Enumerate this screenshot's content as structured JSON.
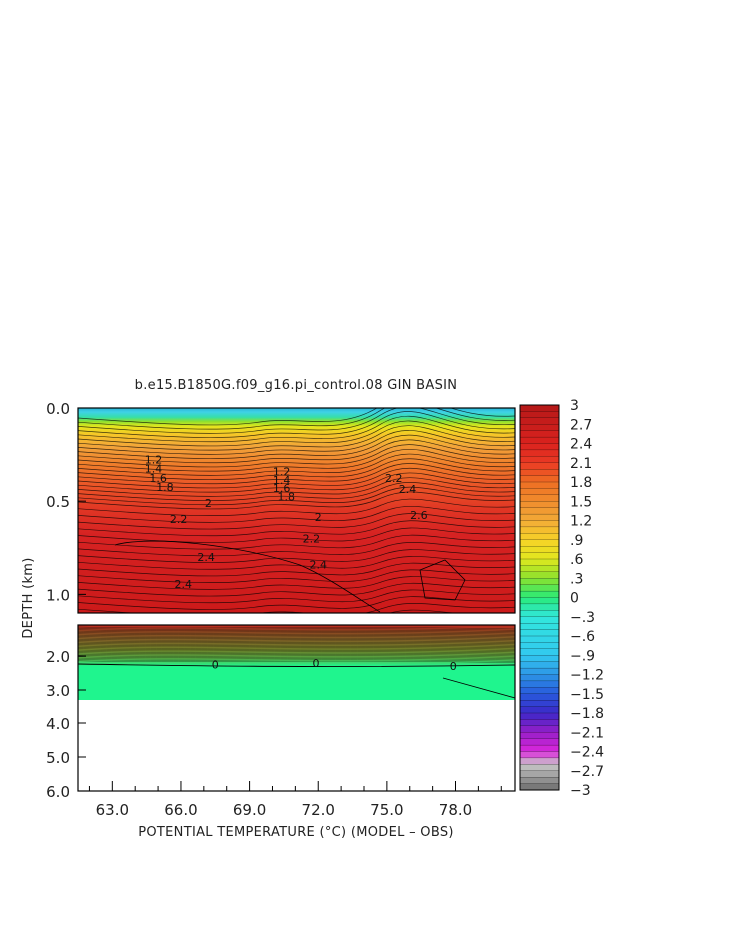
{
  "chart_data": {
    "type": "heatmap",
    "title": "b.e15.B1850G.f09_g16.pi_control.08 GIN BASIN",
    "xlabel": "POTENTIAL TEMPERATURE (°C) (MODEL – OBS)",
    "ylabel": "DEPTH (km)",
    "x_tick_labels": [
      "63.0",
      "66.0",
      "69.0",
      "72.0",
      "75.0",
      "78.0"
    ],
    "x_ticks": [
      63,
      66,
      69,
      72,
      75,
      78
    ],
    "xlim": [
      61.5,
      80.6
    ],
    "upper_panel": {
      "ylim": [
        0,
        1.1
      ],
      "y_tick_labels": [
        "0.0",
        "0.5",
        "1.0"
      ],
      "y_ticks": [
        0,
        0.5,
        1.0
      ]
    },
    "lower_panel": {
      "ylim": [
        1.2,
        6.0
      ],
      "y_tick_labels": [
        "2.0",
        "3.0",
        "4.0",
        "5.0",
        "6.0"
      ],
      "y_ticks": [
        2,
        3,
        4,
        5,
        6
      ]
    },
    "colorbar": {
      "min": -3,
      "max": 3,
      "step": 0.1,
      "tick_labels": [
        "3",
        "2.7",
        "2.4",
        "2.1",
        "1.8",
        "1.5",
        "1.2",
        ".9",
        ".6",
        ".3",
        "0",
        "−.3",
        "−.6",
        "−.9",
        "−1.2",
        "−1.5",
        "−1.8",
        "−2.1",
        "−2.4",
        "−2.7",
        "−3"
      ],
      "tick_values": [
        3,
        2.7,
        2.4,
        2.1,
        1.8,
        1.5,
        1.2,
        0.9,
        0.6,
        0.3,
        0,
        -0.3,
        -0.6,
        -0.9,
        -1.2,
        -1.5,
        -1.8,
        -2.1,
        -2.4,
        -2.7,
        -3
      ]
    },
    "contour_labels": [
      {
        "text": "1.2",
        "x": 64.8,
        "d": 0.275
      },
      {
        "text": "1.4",
        "x": 64.8,
        "d": 0.325
      },
      {
        "text": "1.6",
        "x": 65.0,
        "d": 0.375
      },
      {
        "text": "1.8",
        "x": 65.3,
        "d": 0.425
      },
      {
        "text": "2",
        "x": 67.2,
        "d": 0.51
      },
      {
        "text": "2.2",
        "x": 65.9,
        "d": 0.595
      },
      {
        "text": "2.4",
        "x": 67.1,
        "d": 0.8
      },
      {
        "text": "2.4",
        "x": 66.1,
        "d": 0.945
      },
      {
        "text": "1.2",
        "x": 70.4,
        "d": 0.34
      },
      {
        "text": "1.4",
        "x": 70.4,
        "d": 0.385
      },
      {
        "text": "1.6",
        "x": 70.4,
        "d": 0.43
      },
      {
        "text": "1.8",
        "x": 70.6,
        "d": 0.475
      },
      {
        "text": "2",
        "x": 72.0,
        "d": 0.585
      },
      {
        "text": "2.2",
        "x": 71.7,
        "d": 0.7
      },
      {
        "text": "2.4",
        "x": 72.0,
        "d": 0.84
      },
      {
        "text": "2.2",
        "x": 75.3,
        "d": 0.375
      },
      {
        "text": "2.4",
        "x": 75.9,
        "d": 0.435
      },
      {
        "text": "2.6",
        "x": 76.4,
        "d": 0.575
      },
      {
        "text": "0",
        "x": 67.5,
        "d": 2.25
      },
      {
        "text": "0",
        "x": 71.9,
        "d": 2.2
      },
      {
        "text": "0",
        "x": 77.9,
        "d": 2.3
      }
    ]
  }
}
